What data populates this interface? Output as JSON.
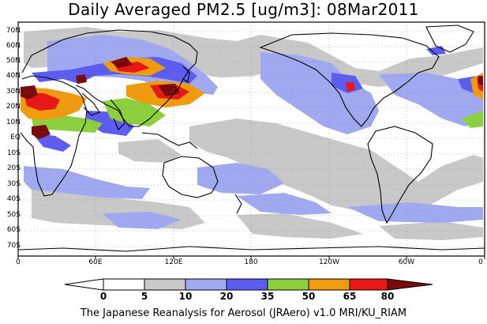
{
  "title": "Daily Averaged PM2.5 [ug/m3]: 08Mar2011",
  "footer": "The Japanese Reanalysis for Aerosol (JRAero) v1.0 MRI/KU_RIAM",
  "lat_labels": [
    "70N",
    "60N",
    "50N",
    "40N",
    "30N",
    "20N",
    "10N",
    "EQ",
    "10S",
    "20S",
    "30S",
    "40S",
    "50S",
    "60S",
    "70S"
  ],
  "lon_labels": [
    "0",
    "60E",
    "120E",
    "180",
    "120W",
    "60W",
    "0"
  ],
  "colorbar": {
    "ticks": [
      "0",
      "5",
      "10",
      "20",
      "35",
      "50",
      "65",
      "80"
    ],
    "colors": [
      "#ffffff",
      "#c8c8c8",
      "#a0a8f0",
      "#5c5cf0",
      "#8cd040",
      "#f09a10",
      "#e81818",
      "#7a0a0a"
    ]
  },
  "colors": {
    "land_outline": "#000000",
    "grid": "#888888",
    "low": "#c8c8c8",
    "light_blue": "#a0a8f0",
    "blue": "#5c5cf0",
    "green": "#8cd040",
    "orange": "#f09a10",
    "red": "#e81818",
    "dark_red": "#7a0a0a"
  }
}
